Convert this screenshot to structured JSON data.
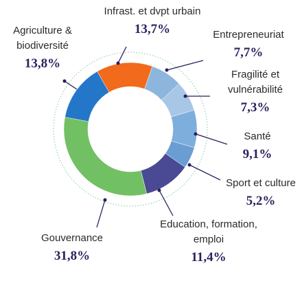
{
  "chart_data": {
    "type": "donut",
    "categories": [
      "Infrast. et dvpt urbain",
      "Entrepreneuriat",
      "Fragilité et vulnérabilité",
      "Santé",
      "Sport et culture",
      "Education, formation, emploi",
      "Gouvernance",
      "Agriculture & biodiversité"
    ],
    "values": [
      13.7,
      7.7,
      7.3,
      9.1,
      5.2,
      11.4,
      31.8,
      13.8
    ],
    "value_labels": [
      "13,7%",
      "7,7%",
      "7,3%",
      "9,1%",
      "5,2%",
      "11,4%",
      "31,8%",
      "13,8%"
    ],
    "colors": [
      "#f26a1b",
      "#8db6de",
      "#a8c6e6",
      "#7eaedb",
      "#6a9ed3",
      "#4a4a94",
      "#72c064",
      "#2477c8"
    ]
  }
}
